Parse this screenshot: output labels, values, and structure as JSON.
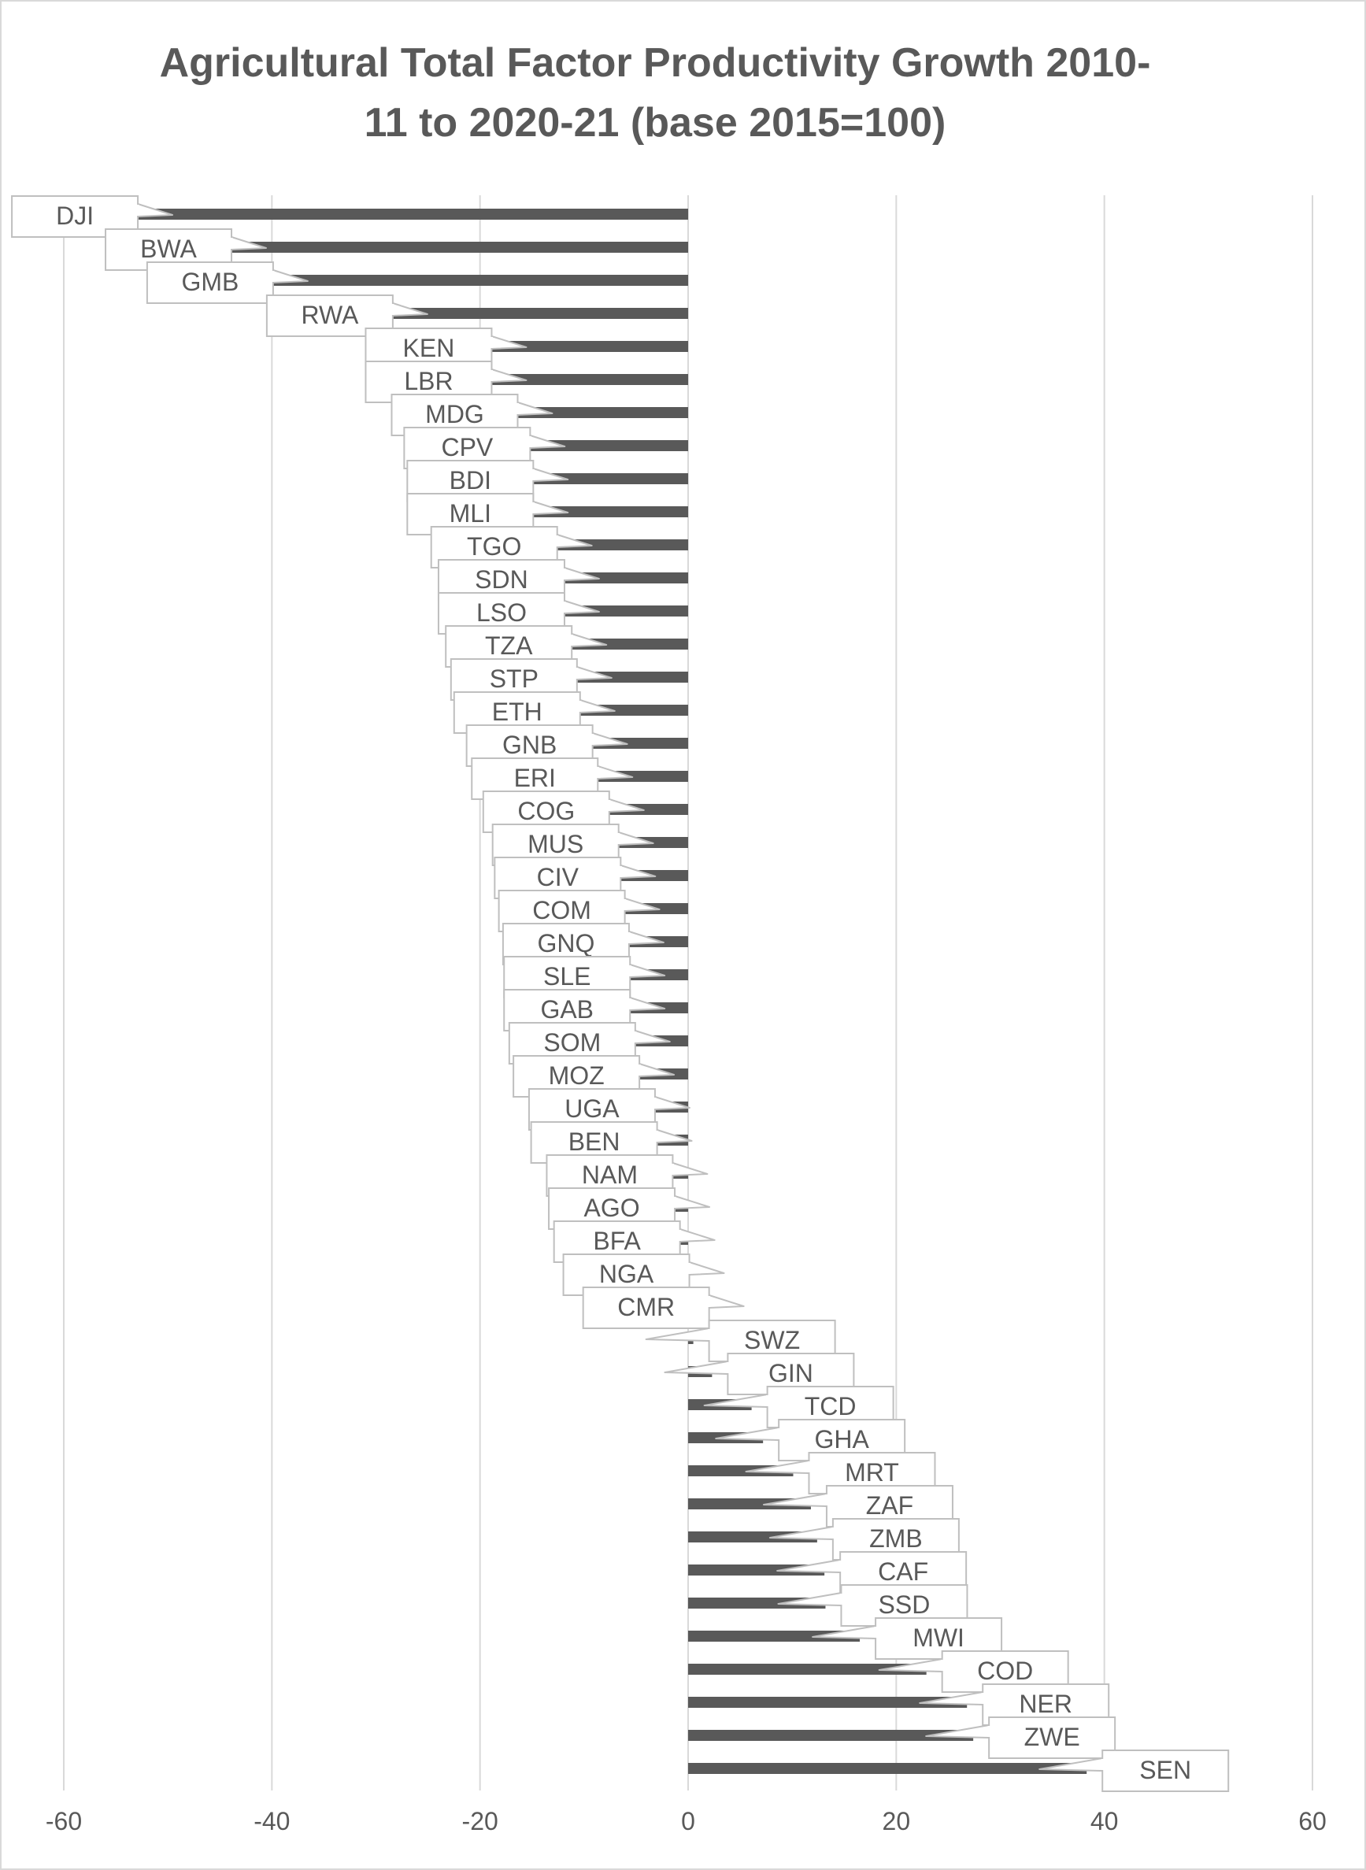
{
  "chart_data": {
    "type": "bar",
    "orientation": "horizontal",
    "title": "Agricultural Total Factor Productivity Growth 2010-11 to 2020-21 (base 2015=100)",
    "title_lines": [
      "Agricultural Total Factor Productivity Growth 2010-",
      "11 to 2020-21 (base 2015=100)"
    ],
    "xlabel": "",
    "ylabel": "",
    "xlim": [
      -60,
      60
    ],
    "x_ticks": [
      -60,
      -40,
      -20,
      0,
      20,
      40,
      60
    ],
    "grid": "vertical",
    "legend": "none",
    "bar_color": "#595959",
    "categories": [
      "DJI",
      "BWA",
      "GMB",
      "RWA",
      "KEN",
      "LBR",
      "MDG",
      "CPV",
      "BDI",
      "MLI",
      "TGO",
      "SDN",
      "LSO",
      "TZA",
      "STP",
      "ETH",
      "GNB",
      "ERI",
      "COG",
      "MUS",
      "CIV",
      "COM",
      "GNQ",
      "SLE",
      "GAB",
      "SOM",
      "MOZ",
      "UGA",
      "BEN",
      "NAM",
      "AGO",
      "BFA",
      "NGA",
      "CMR",
      "SWZ",
      "GIN",
      "TCD",
      "GHA",
      "MRT",
      "ZAF",
      "ZMB",
      "CAF",
      "SSD",
      "MWI",
      "COD",
      "NER",
      "ZWE",
      "SEN"
    ],
    "values": [
      -55,
      -46,
      -42,
      -30.5,
      -21,
      -21,
      -18.5,
      -17.3,
      -17,
      -17,
      -14.7,
      -14,
      -14,
      -13.3,
      -12.8,
      -12.5,
      -11.3,
      -10.8,
      -9.7,
      -8.8,
      -8.6,
      -8.2,
      -7.8,
      -7.7,
      -7.7,
      -7.2,
      -6.8,
      -5.3,
      -5.1,
      -3.6,
      -3.4,
      -2.9,
      -2,
      -0.1,
      0.5,
      2.3,
      6.1,
      7.2,
      10.1,
      11.8,
      12.4,
      13.1,
      13.2,
      16.5,
      22.9,
      26.8,
      27.4,
      38.3
    ]
  }
}
